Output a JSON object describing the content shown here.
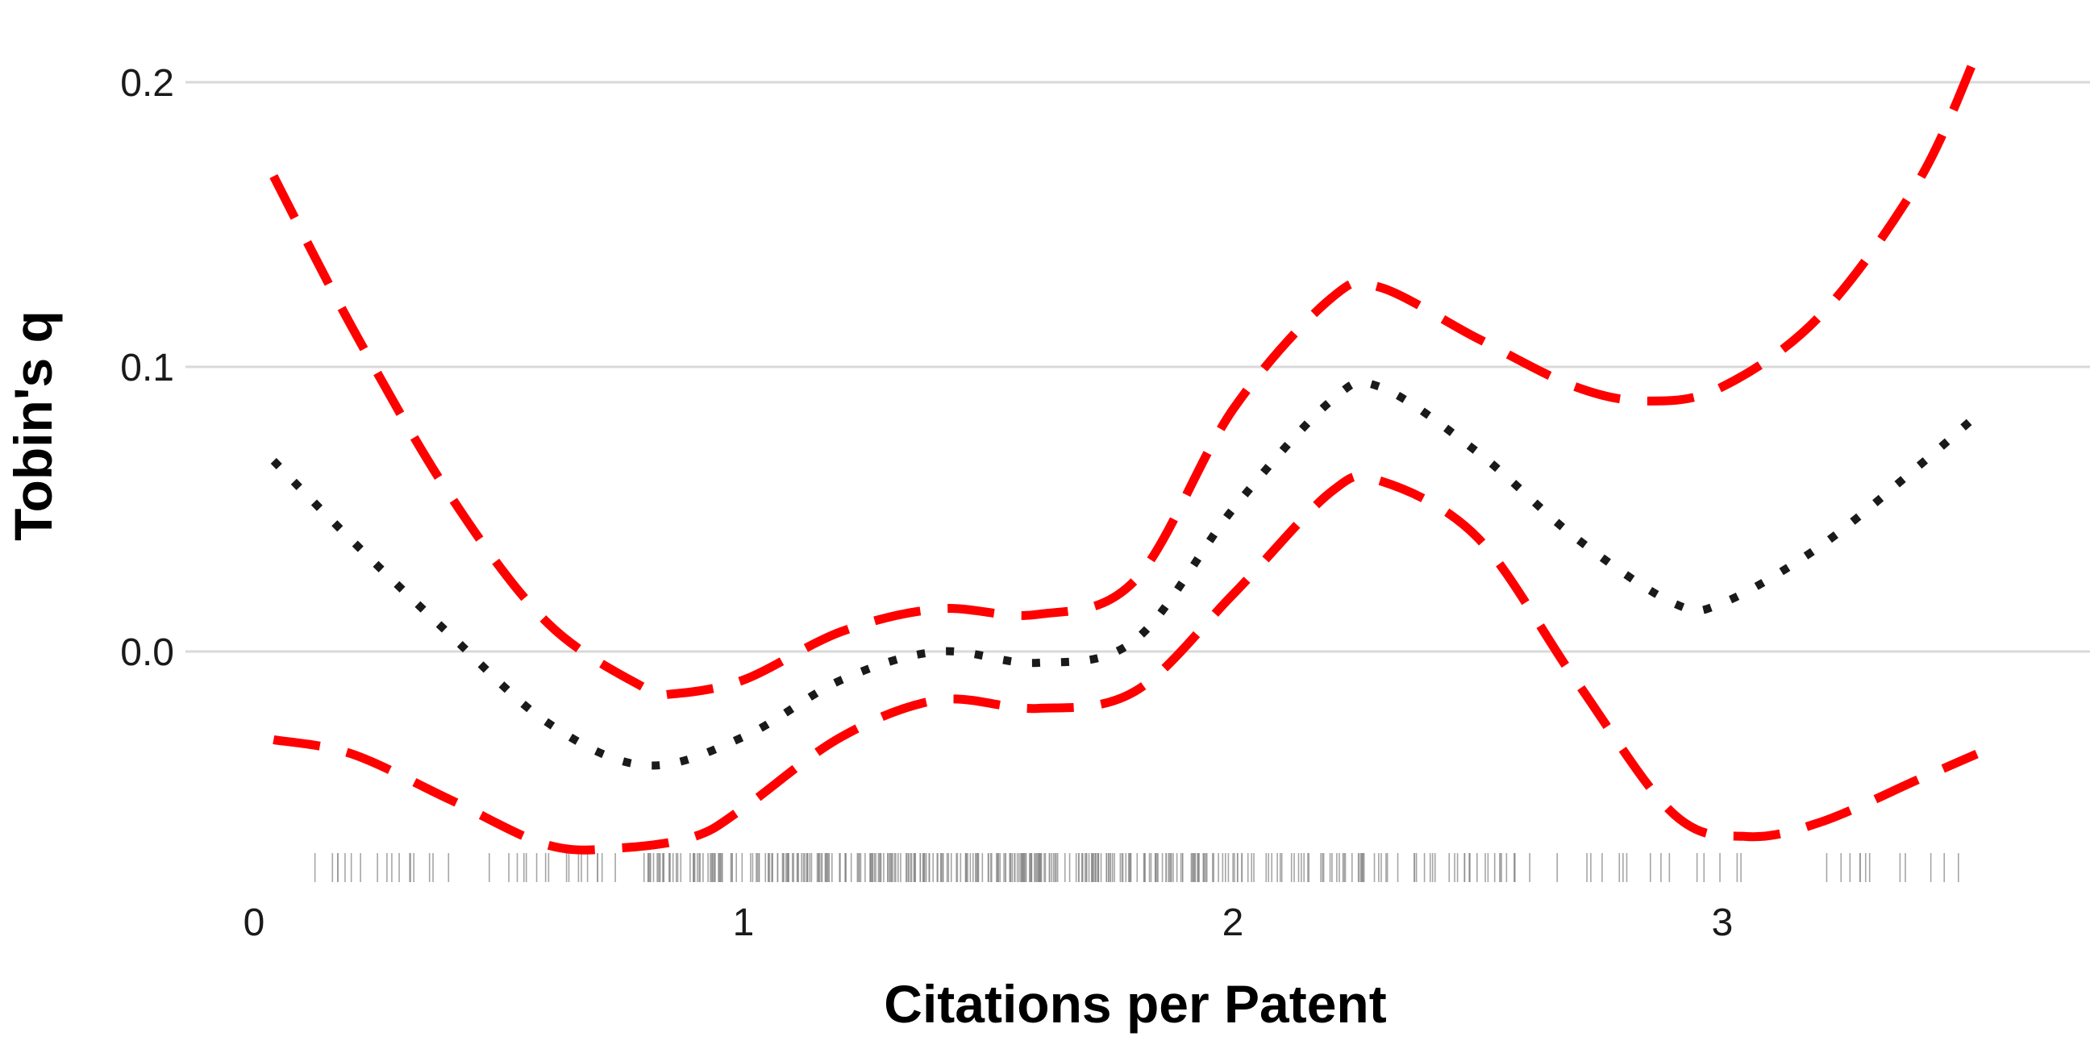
{
  "chart_data": {
    "type": "line",
    "title": "",
    "xlabel": "Citations per Patent",
    "ylabel": "Tobin's q",
    "xlim": [
      0,
      3.65
    ],
    "ylim": [
      -0.075,
      0.215
    ],
    "x_ticks": [
      0,
      1,
      2,
      3
    ],
    "x_tick_labels": [
      "0",
      "1",
      "2",
      "3"
    ],
    "y_ticks": [
      0,
      0.1,
      0.2
    ],
    "y_tick_labels": [
      "0.0",
      "0.1",
      "0.2"
    ],
    "grid": "horizontal",
    "legend": "none",
    "series": [
      {
        "role": "estimate",
        "style": "dotted",
        "color": "#1a1a1a",
        "x": [
          0.04,
          0.2,
          0.4,
          0.6,
          0.8,
          1.0,
          1.2,
          1.4,
          1.6,
          1.8,
          2.0,
          2.2,
          2.3,
          2.5,
          2.7,
          2.9,
          3.0,
          3.2,
          3.4,
          3.52
        ],
        "y": [
          0.067,
          0.039,
          0.006,
          -0.025,
          -0.04,
          -0.03,
          -0.01,
          0.0,
          -0.004,
          0.004,
          0.05,
          0.088,
          0.093,
          0.07,
          0.04,
          0.017,
          0.017,
          0.037,
          0.065,
          0.083
        ]
      },
      {
        "role": "upper-bound",
        "style": "dashed",
        "color": "#ff0000",
        "x": [
          0.04,
          0.2,
          0.4,
          0.6,
          0.8,
          0.85,
          1.0,
          1.2,
          1.4,
          1.6,
          1.8,
          2.0,
          2.2,
          2.3,
          2.5,
          2.7,
          2.85,
          3.0,
          3.2,
          3.4,
          3.52
        ],
        "y": [
          0.167,
          0.114,
          0.055,
          0.01,
          -0.013,
          -0.015,
          -0.01,
          0.007,
          0.015,
          0.013,
          0.025,
          0.085,
          0.124,
          0.128,
          0.11,
          0.093,
          0.088,
          0.093,
          0.118,
          0.165,
          0.21
        ]
      },
      {
        "role": "lower-bound",
        "style": "dashed",
        "color": "#ff0000",
        "x": [
          0.04,
          0.2,
          0.4,
          0.6,
          0.75,
          0.9,
          1.0,
          1.2,
          1.4,
          1.6,
          1.8,
          2.0,
          2.2,
          2.3,
          2.5,
          2.7,
          2.9,
          3.05,
          3.2,
          3.4,
          3.52
        ],
        "y": [
          -0.031,
          -0.036,
          -0.052,
          -0.068,
          -0.069,
          -0.065,
          -0.055,
          -0.03,
          -0.017,
          -0.02,
          -0.014,
          0.02,
          0.056,
          0.06,
          0.04,
          -0.01,
          -0.057,
          -0.065,
          -0.06,
          -0.045,
          -0.036
        ]
      }
    ],
    "rug": {
      "color": "#888888",
      "ranges": [
        [
          0.04,
          0.8
        ],
        [
          0.8,
          1.95
        ],
        [
          1.95,
          2.6
        ],
        [
          2.6,
          3.52
        ]
      ],
      "density": [
        35,
        330,
        80,
        28
      ]
    }
  }
}
